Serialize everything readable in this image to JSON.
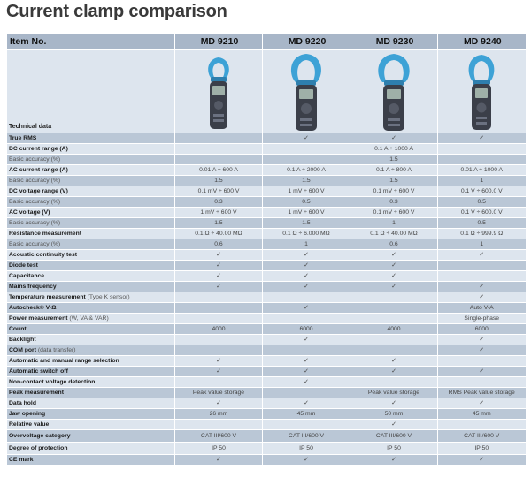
{
  "title": "Current clamp comparison",
  "header": {
    "item_label": "Item No.",
    "models": [
      "MD 9210",
      "MD 9220",
      "MD 9230",
      "MD 9240"
    ]
  },
  "technical_label": "Technical data",
  "colors": {
    "header_bg": "#a8b6c8",
    "row_dark": "#bac7d6",
    "row_light": "#dde5ee",
    "clamp_body": "#3b3f49",
    "clamp_jaw": "#3da2d6"
  },
  "product_icons": [
    "clamp-meter-icon",
    "clamp-meter-icon",
    "clamp-meter-icon",
    "clamp-meter-icon"
  ],
  "rows": [
    {
      "label": "True RMS",
      "note": "",
      "sub": false,
      "values": [
        "",
        "✓",
        "✓",
        "✓"
      ]
    },
    {
      "label": "DC current range (A)",
      "note": "",
      "sub": false,
      "values": [
        "",
        "",
        "0.1 A ÷ 1000 A",
        ""
      ]
    },
    {
      "label": "Basic accuracy (%)",
      "note": "",
      "sub": true,
      "values": [
        "",
        "",
        "1.5",
        ""
      ]
    },
    {
      "label": "AC current range (A)",
      "note": "",
      "sub": false,
      "values": [
        "0.01 A ÷ 600 A",
        "0.1 A ÷ 2000 A",
        "0.1 A ÷ 800 A",
        "0.01 A ÷ 1000 A"
      ]
    },
    {
      "label": "Basic accuracy (%)",
      "note": "",
      "sub": true,
      "values": [
        "1.5",
        "1.5",
        "1.5",
        "1"
      ]
    },
    {
      "label": "DC voltage range (V)",
      "note": "",
      "sub": false,
      "values": [
        "0.1 mV ÷ 600 V",
        "1 mV ÷ 600 V",
        "0.1 mV ÷ 600 V",
        "0.1 V ÷ 600.0 V"
      ]
    },
    {
      "label": "Basic accuracy (%)",
      "note": "",
      "sub": true,
      "values": [
        "0.3",
        "0.5",
        "0.3",
        "0.5"
      ]
    },
    {
      "label": "AC voltage (V)",
      "note": "",
      "sub": false,
      "values": [
        "1 mV ÷ 600 V",
        "1 mV ÷ 600 V",
        "0.1 mV ÷ 600 V",
        "0.1 V ÷ 600.0 V"
      ]
    },
    {
      "label": "Basic accuracy (%)",
      "note": "",
      "sub": true,
      "values": [
        "1.5",
        "1.5",
        "1",
        "0.5"
      ]
    },
    {
      "label": "Resistance measurement",
      "note": "",
      "sub": false,
      "values": [
        "0.1 Ω ÷ 40.00 MΩ",
        "0.1 Ω ÷ 6.000 MΩ",
        "0.1 Ω ÷ 40.00 MΩ",
        "0.1 Ω ÷ 999.9 Ω"
      ]
    },
    {
      "label": "Basic accuracy (%)",
      "note": "",
      "sub": true,
      "values": [
        "0.6",
        "1",
        "0.6",
        "1"
      ]
    },
    {
      "label": "Acoustic continuity test",
      "note": "",
      "sub": false,
      "values": [
        "✓",
        "✓",
        "✓",
        "✓"
      ]
    },
    {
      "label": "Diode test",
      "note": "",
      "sub": false,
      "values": [
        "✓",
        "✓",
        "✓",
        ""
      ]
    },
    {
      "label": "Capacitance",
      "note": "",
      "sub": false,
      "values": [
        "✓",
        "✓",
        "✓",
        ""
      ]
    },
    {
      "label": "Mains frequency",
      "note": "",
      "sub": false,
      "values": [
        "✓",
        "✓",
        "✓",
        "✓"
      ]
    },
    {
      "label": "Temperature measurement",
      "note": "(Type K sensor)",
      "sub": false,
      "values": [
        "",
        "",
        "",
        "✓"
      ]
    },
    {
      "label": "Autocheck® V-Ω",
      "note": "",
      "sub": false,
      "values": [
        "",
        "✓",
        "",
        "Auto V-A"
      ]
    },
    {
      "label": "Power measurement",
      "note": "(W, VA & VAR)",
      "sub": false,
      "values": [
        "",
        "",
        "",
        "Single-phase"
      ]
    },
    {
      "label": "Count",
      "note": "",
      "sub": false,
      "values": [
        "4000",
        "6000",
        "4000",
        "6000"
      ]
    },
    {
      "label": "Backlight",
      "note": "",
      "sub": false,
      "values": [
        "",
        "✓",
        "",
        "✓"
      ]
    },
    {
      "label": "COM port",
      "note": "(data transfer)",
      "sub": false,
      "values": [
        "",
        "",
        "",
        "✓"
      ]
    },
    {
      "label": "Automatic and manual range selection",
      "note": "",
      "sub": false,
      "values": [
        "✓",
        "✓",
        "✓",
        ""
      ]
    },
    {
      "label": "Automatic switch off",
      "note": "",
      "sub": false,
      "values": [
        "✓",
        "✓",
        "✓",
        "✓"
      ]
    },
    {
      "label": "Non-contact voltage detection",
      "note": "",
      "sub": false,
      "values": [
        "",
        "✓",
        "",
        ""
      ]
    },
    {
      "label": "Peak measurement",
      "note": "",
      "sub": false,
      "values": [
        "Peak value storage",
        "",
        "Peak value storage",
        "RMS Peak value storage"
      ]
    },
    {
      "label": "Data hold",
      "note": "",
      "sub": false,
      "values": [
        "✓",
        "✓",
        "✓",
        "✓"
      ]
    },
    {
      "label": "Jaw opening",
      "note": "",
      "sub": false,
      "values": [
        "26 mm",
        "45 mm",
        "50 mm",
        "45 mm"
      ]
    },
    {
      "label": "Relative value",
      "note": "",
      "sub": false,
      "values": [
        "",
        "",
        "✓",
        ""
      ]
    },
    {
      "label": "Overvoltage category",
      "note": "",
      "sub": false,
      "values": [
        "CAT III/600 V",
        "CAT III/600 V",
        "CAT III/600 V",
        "CAT III/600 V"
      ]
    },
    {
      "label": "Degree of protection",
      "note": "",
      "sub": false,
      "values": [
        "IP 50",
        "IP 50",
        "IP 50",
        "IP 50"
      ]
    },
    {
      "label": "CE mark",
      "note": "",
      "sub": false,
      "values": [
        "✓",
        "✓",
        "✓",
        "✓"
      ]
    }
  ]
}
